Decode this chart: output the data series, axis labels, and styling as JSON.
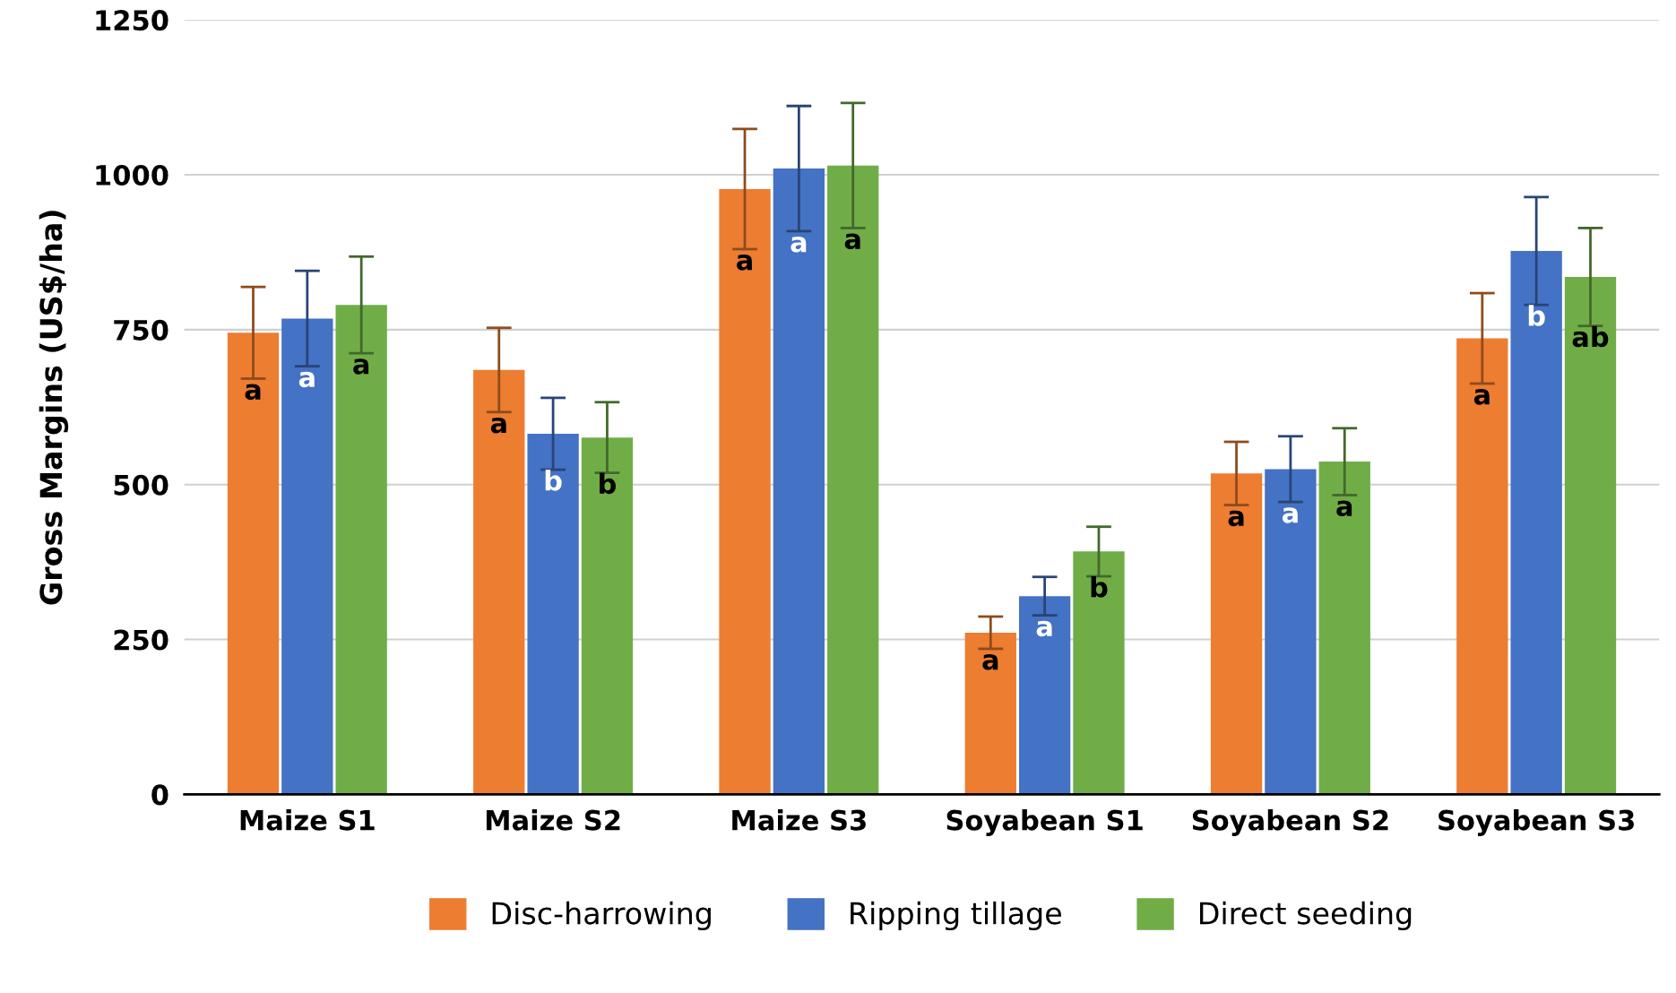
{
  "chart_data": {
    "type": "bar",
    "ylabel": "Gross Margins (US$/ha)",
    "categories": [
      "Maize S1",
      "Maize S2",
      "Maize S3",
      "Soyabean S1",
      "Soyabean S2",
      "Soyabean S3"
    ],
    "series": [
      {
        "name": "Disc-harrowing",
        "color": "#ed7d31",
        "values": [
          745,
          685,
          977,
          261,
          518,
          736
        ],
        "errors": [
          74,
          68,
          97,
          26,
          51,
          73
        ],
        "value_labels": [
          "a",
          "a",
          "a",
          "a",
          "a",
          "a"
        ]
      },
      {
        "name": "Ripping tillage",
        "color": "#4472c4",
        "values": [
          768,
          582,
          1010,
          320,
          525,
          877
        ],
        "errors": [
          77,
          58,
          101,
          31,
          53,
          87
        ],
        "value_labels": [
          "a",
          "b",
          "a",
          "a",
          "a",
          "b"
        ]
      },
      {
        "name": "Direct seeding",
        "color": "#70ad47",
        "values": [
          790,
          576,
          1015,
          392,
          537,
          835
        ],
        "errors": [
          78,
          57,
          101,
          40,
          54,
          79
        ],
        "value_labels": [
          "a",
          "b",
          "a",
          "b",
          "a",
          "ab"
        ]
      }
    ],
    "ylim": [
      0,
      1250
    ],
    "yticks": [
      0,
      250,
      500,
      750,
      1000,
      1250
    ],
    "grid": "y",
    "legend": "bottom"
  }
}
